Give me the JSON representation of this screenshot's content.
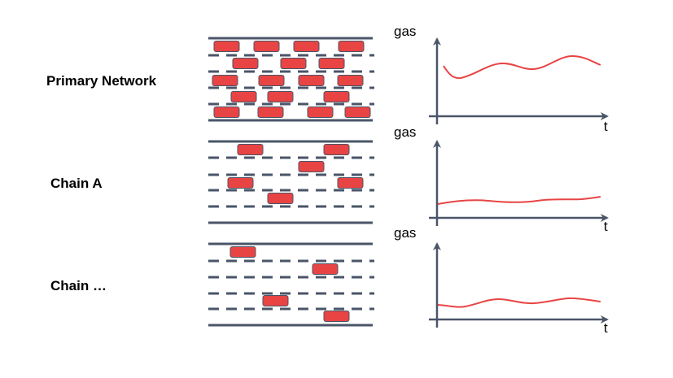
{
  "networks": [
    {
      "label": "Primary Network",
      "y_axis_label": "gas",
      "x_axis_label": "t"
    },
    {
      "label": "Chain A",
      "y_axis_label": "gas",
      "x_axis_label": "t"
    },
    {
      "label": "Chain …",
      "y_axis_label": "gas",
      "x_axis_label": "t"
    }
  ],
  "colors": {
    "road": "#4a5568",
    "car": "#e84444",
    "car_border": "#4a5568",
    "gas_curve": "#e84444",
    "axis": "#4a5568"
  }
}
